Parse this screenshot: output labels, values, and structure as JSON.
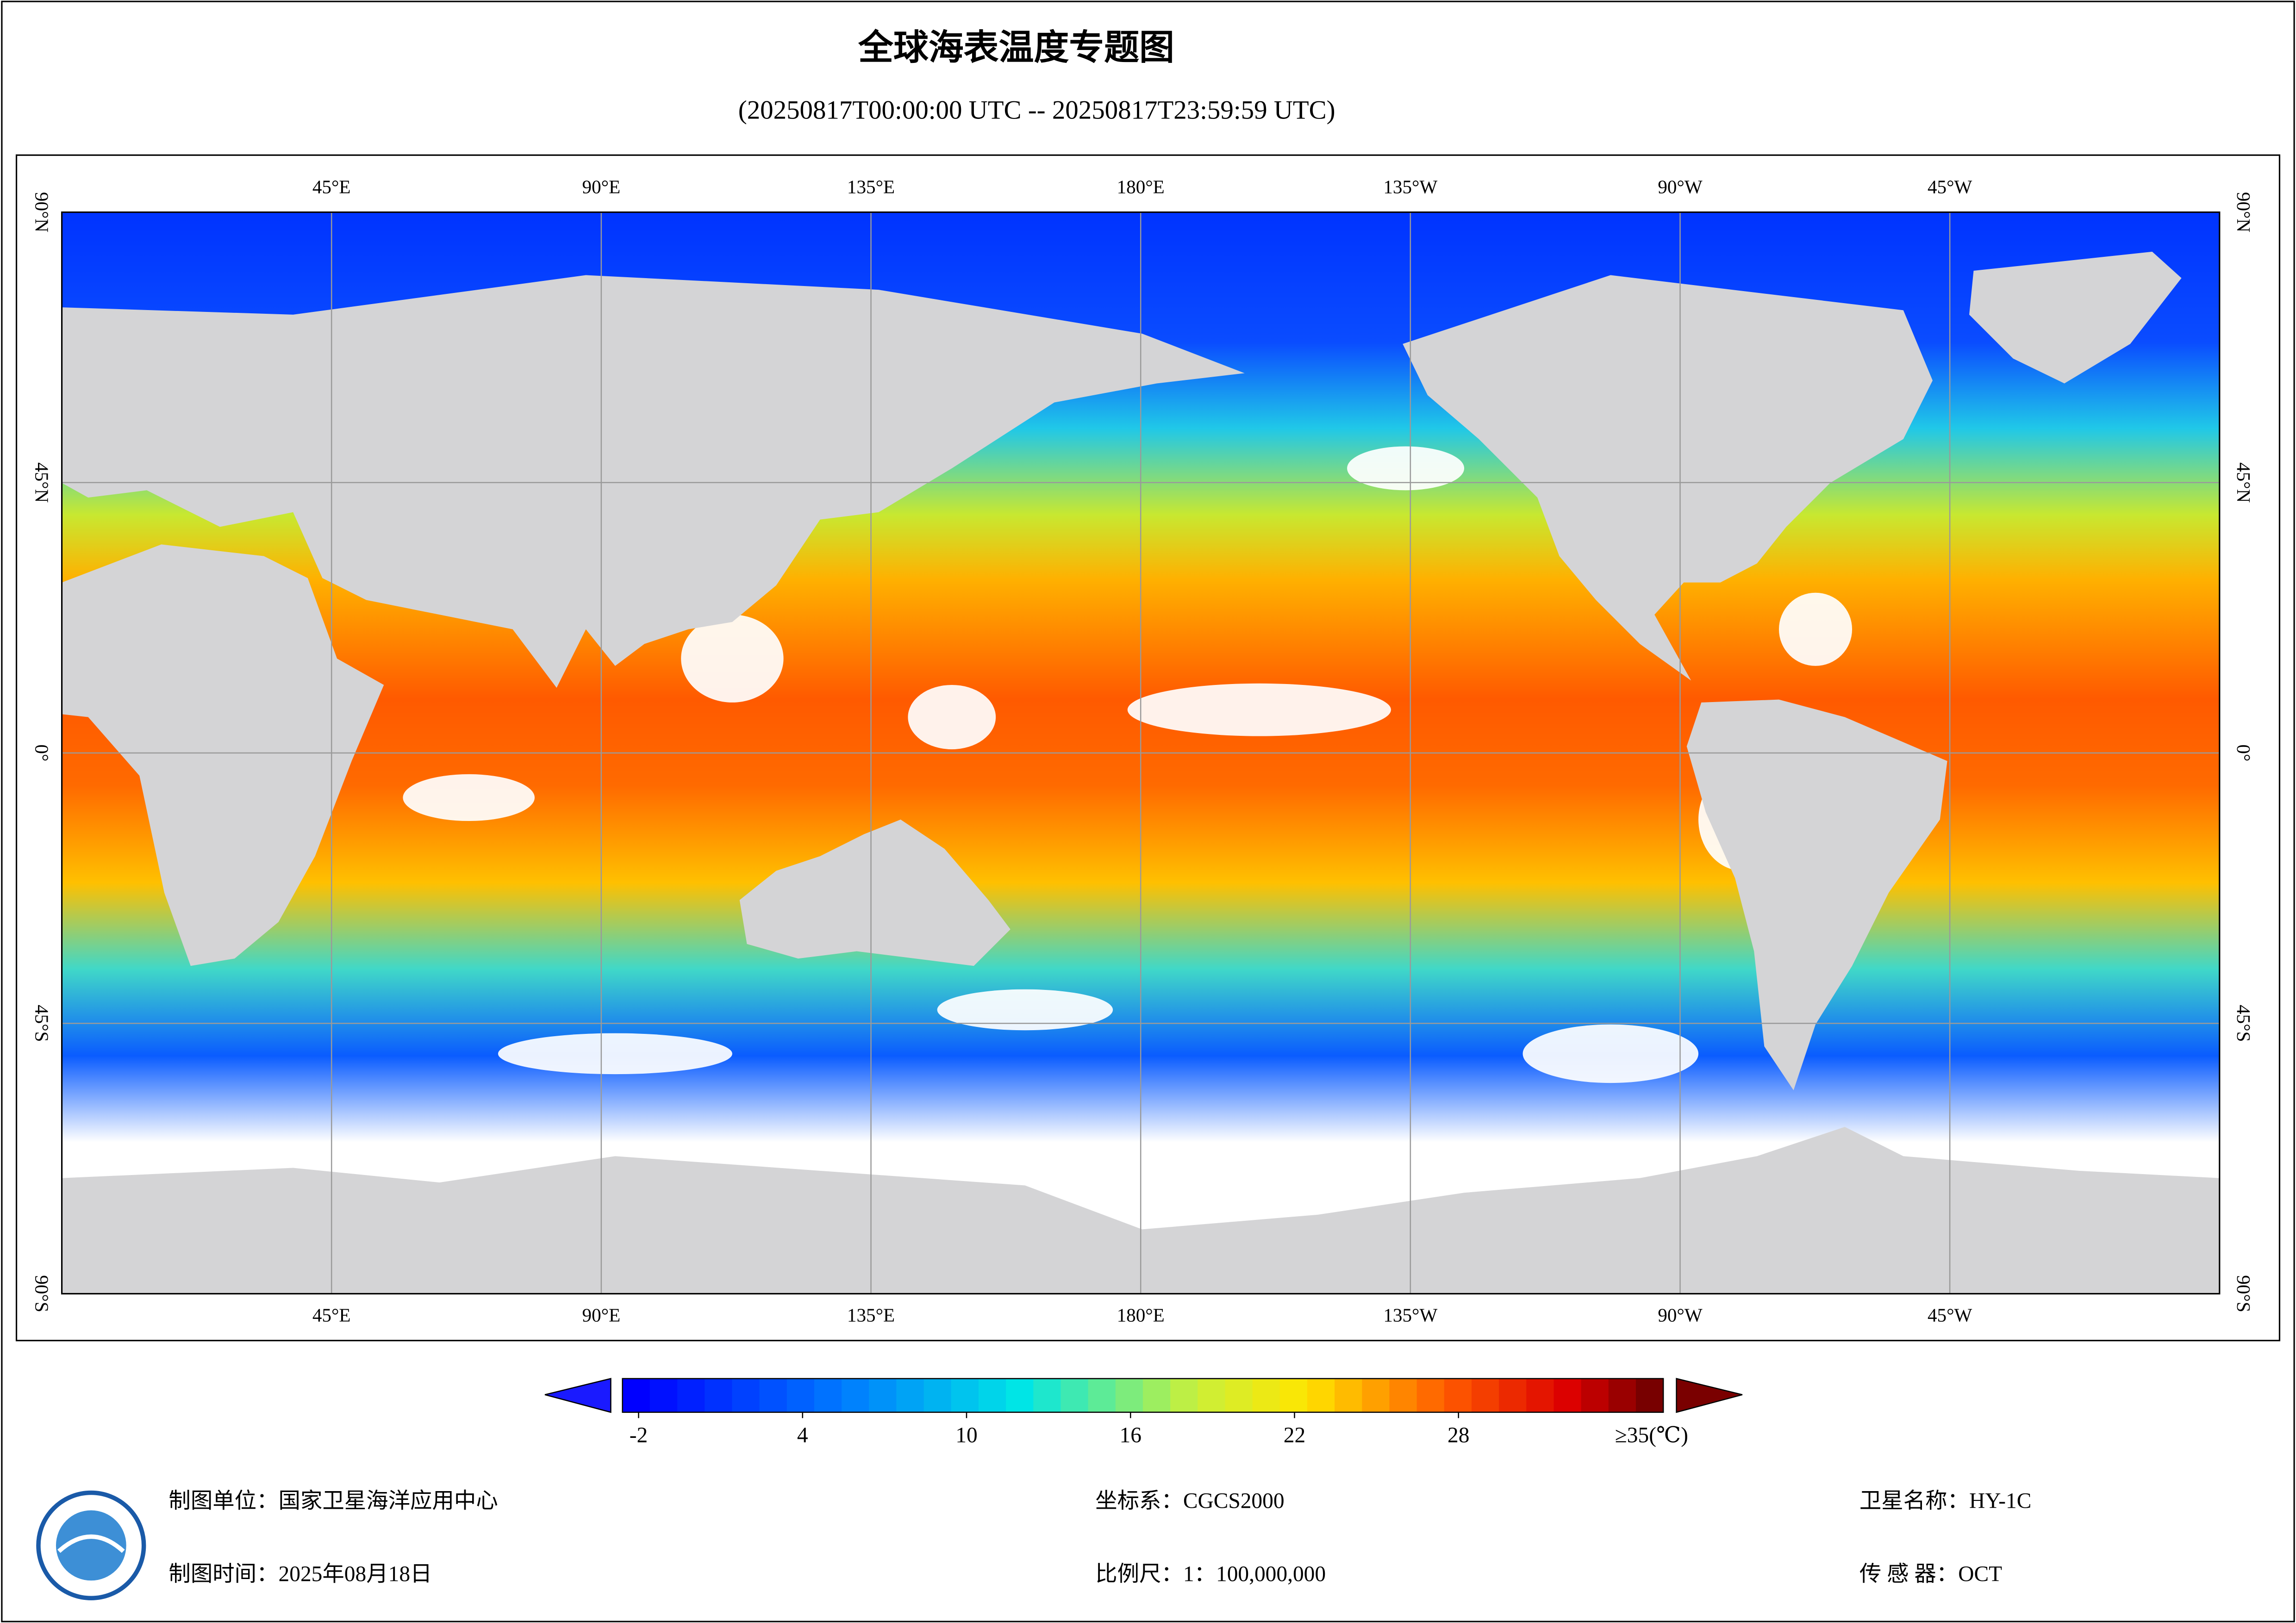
{
  "title": "全球海表温度专题图",
  "subtitle": "(20250817T00:00:00 UTC -- 20250817T23:59:59 UTC)",
  "map": {
    "lon_labels": [
      "45°E",
      "90°E",
      "135°E",
      "180°E",
      "135°W",
      "90°W",
      "45°W"
    ],
    "lat_labels": [
      "90°N",
      "45°N",
      "0°",
      "45°S",
      "90°S"
    ]
  },
  "colorbar": {
    "ticks": [
      -2,
      4,
      10,
      16,
      22,
      28
    ],
    "max_label": "≥35(℃)"
  },
  "footer": {
    "unit": "制图单位：国家卫星海洋应用中心",
    "date": "制图时间：2025年08月18日",
    "crs": "坐标系：CGCS2000",
    "scale": "比例尺：1：100,000,000",
    "satellite": "卫星名称：HY-1C",
    "sensor": "传 感 器：OCT"
  }
}
